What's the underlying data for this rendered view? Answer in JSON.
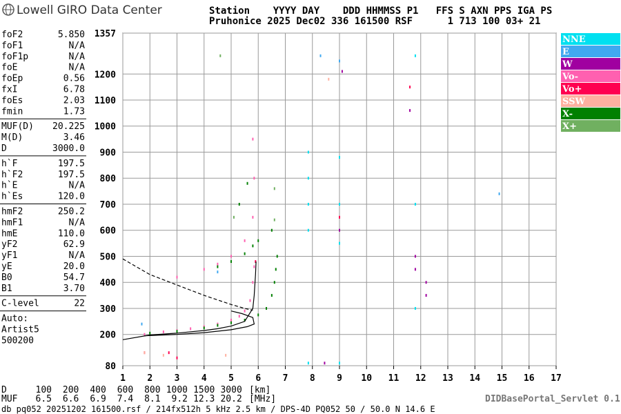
{
  "header": {
    "logo": "Lowell GIRO Data Center",
    "line1": "Station    YYYY DAY    DDD HHMMSS P1   FFS S AXN PPS IGA PS",
    "line2": "Pruhonice 2025 Dec02 336 161500 RSF      1 713 100 03+ 21"
  },
  "parameters": [
    [
      [
        "foF2",
        "5.850"
      ],
      [
        "foF1",
        "N/A"
      ],
      [
        "foF1p",
        "N/A"
      ],
      [
        "foE",
        "N/A"
      ],
      [
        "foEp",
        "0.56"
      ],
      [
        "fxI",
        "6.78"
      ],
      [
        "foEs",
        "2.03"
      ],
      [
        "fmin",
        "1.73"
      ]
    ],
    [
      [
        "MUF(D)",
        "20.225"
      ],
      [
        "M(D)",
        "3.46"
      ],
      [
        "D",
        "3000.0"
      ]
    ],
    [
      [
        "h`F",
        "197.5"
      ],
      [
        "h`F2",
        "197.5"
      ],
      [
        "h`E",
        "N/A"
      ],
      [
        "h`Es",
        "120.0"
      ]
    ],
    [
      [
        "hmF2",
        "250.2"
      ],
      [
        "hmF1",
        "N/A"
      ],
      [
        "hmE",
        "110.0"
      ],
      [
        "yF2",
        "62.9"
      ],
      [
        "yF1",
        "N/A"
      ],
      [
        "yE",
        "20.0"
      ],
      [
        "B0",
        "54.7"
      ],
      [
        "B1",
        "3.70"
      ]
    ],
    [
      [
        "C-level",
        "22"
      ]
    ]
  ],
  "auto": [
    "Auto:",
    "Artist5",
    "500200"
  ],
  "chart_data": {
    "type": "scatter",
    "xlim": [
      1,
      17
    ],
    "ylim": [
      80,
      1357
    ],
    "xticks": [
      1,
      2,
      3,
      4,
      5,
      6,
      7,
      8,
      9,
      10,
      11,
      12,
      13,
      14,
      15,
      16,
      17
    ],
    "yticks": [
      80,
      200,
      300,
      400,
      500,
      600,
      700,
      800,
      900,
      1000,
      1100,
      1200,
      1357
    ],
    "grid": true,
    "series": [
      {
        "name": "NNE",
        "color": "#00e0f0",
        "x": [
          7.85,
          7.85,
          7.85,
          7.85,
          9.0,
          9.0,
          9.0,
          11.8,
          11.8,
          11.8,
          7.85,
          9.0
        ],
        "values": [
          900,
          800,
          700,
          600,
          880,
          700,
          550,
          1270,
          700,
          300,
          90,
          90
        ]
      },
      {
        "name": "E",
        "color": "#40a8f0",
        "x": [
          9.0,
          1.7,
          4.5,
          8.3,
          14.9
        ],
        "values": [
          1250,
          240,
          440,
          1270,
          740
        ]
      },
      {
        "name": "W",
        "color": "#a000a0",
        "x": [
          9.0,
          11.8,
          11.8,
          12.2,
          12.2,
          11.6,
          9.1,
          8.45
        ],
        "values": [
          600,
          500,
          450,
          400,
          350,
          1060,
          1210,
          90
        ]
      },
      {
        "name": "Vo-",
        "color": "#ff60b0",
        "x": [
          1.8,
          2.5,
          3.0,
          3.5,
          4.0,
          4.5,
          5.0,
          5.3,
          5.5,
          5.7,
          5.8,
          5.85,
          3.0,
          4.0,
          4.5,
          5.0,
          5.5,
          5.8,
          5.85,
          5.8
        ],
        "values": [
          200,
          210,
          215,
          222,
          230,
          240,
          255,
          270,
          290,
          330,
          400,
          460,
          420,
          450,
          470,
          500,
          560,
          650,
          800,
          950
        ]
      },
      {
        "name": "Vo+",
        "color": "#ff0050",
        "x": [
          11.6,
          9.0,
          1.8,
          2.7,
          3.0,
          5.9
        ],
        "values": [
          1150,
          650,
          130,
          130,
          110,
          480
        ]
      },
      {
        "name": "SSW",
        "color": "#ffb0a0",
        "x": [
          1.8,
          2.5,
          4.8,
          8.6
        ],
        "values": [
          130,
          120,
          120,
          1180
        ]
      },
      {
        "name": "X-",
        "color": "#008000",
        "x": [
          2.0,
          3.0,
          4.0,
          4.5,
          5.0,
          5.5,
          6.0,
          6.3,
          6.5,
          6.6,
          6.65,
          6.7,
          4.5,
          5.0,
          5.5,
          5.8,
          6.0,
          6.5,
          5.3,
          5.6
        ],
        "values": [
          205,
          212,
          225,
          235,
          245,
          255,
          275,
          300,
          350,
          400,
          450,
          500,
          460,
          480,
          510,
          540,
          560,
          600,
          700,
          780
        ]
      },
      {
        "name": "X+",
        "color": "#70b060",
        "x": [
          6.6,
          6.6,
          5.1,
          4.6
        ],
        "values": [
          760,
          640,
          650,
          1270
        ]
      }
    ],
    "curves": [
      {
        "color": "#000000",
        "dashed": false,
        "x": [
          1.0,
          2.0,
          3.0,
          4.0,
          4.5,
          5.0,
          5.5,
          5.8,
          5.85,
          5.9,
          5.92
        ],
        "values": [
          180,
          198,
          205,
          215,
          222,
          232,
          250,
          300,
          350,
          430,
          480
        ]
      },
      {
        "color": "#000000",
        "dashed": false,
        "x": [
          1.8,
          3.0,
          4.0,
          5.0,
          5.6,
          5.85,
          5.8,
          5.4,
          5.0
        ],
        "values": [
          195,
          200,
          207,
          218,
          230,
          240,
          265,
          280,
          290
        ]
      },
      {
        "color": "#000000",
        "dashed": true,
        "x": [
          1.0,
          1.5,
          2.0,
          3.0,
          4.0,
          5.0,
          5.5,
          5.8
        ],
        "values": [
          490,
          460,
          430,
          390,
          350,
          315,
          300,
          293
        ]
      }
    ]
  },
  "scale": {
    "d_label": "D",
    "d_values": [
      100,
      200,
      400,
      600,
      800,
      1000,
      1500,
      3000
    ],
    "d_unit": "[km]",
    "muf_label": "MUF",
    "muf_values": [
      6.5,
      6.6,
      6.9,
      7.4,
      8.1,
      9.2,
      12.3,
      20.2
    ],
    "muf_unit": "[MHz]"
  },
  "footer": "db pq052 20251202 161500.rsf / 214fx512h 5 kHz 2.5 km / DPS-4D PQ052 50 / 50.0 N 14.6 E",
  "servlet": "DIDBasePortal_Servlet 0.1"
}
